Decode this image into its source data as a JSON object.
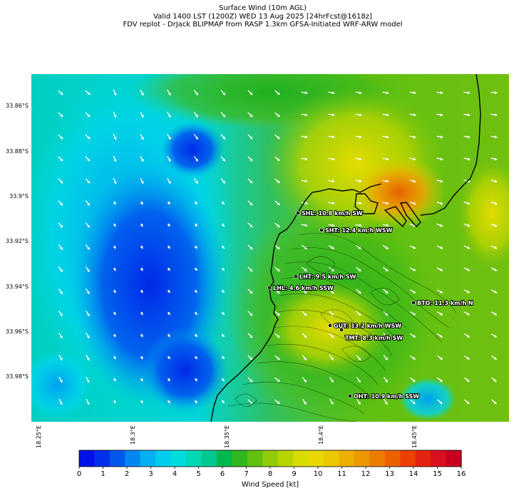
{
  "titles": {
    "line1": "Surface Wind (10m AGL)",
    "line2": "Valid 1400 LST (1200Z) WED 13 Aug 2025 [24hrFcst@1618z]",
    "line3": "FDV replot - DrJack BLIPMAP from RASP 1.3km GFSA-Initiated WRF-ARW model"
  },
  "axes": {
    "lat_labels": [
      "33.86°S",
      "33.88°S",
      "33.9°S",
      "33.92°S",
      "33.94°S",
      "33.96°S",
      "33.98°S"
    ],
    "lon_labels": [
      "18.25°E",
      "18.3°E",
      "18.35°E",
      "18.4°E",
      "18.45°E"
    ]
  },
  "stations": [
    {
      "code": "SHL",
      "label": "SHL: 10.8 km/h SW"
    },
    {
      "code": "SHT",
      "label": "SHT: 12.4 km/h WSW"
    },
    {
      "code": "LHT",
      "label": "LHT: 9.5 km/h SW"
    },
    {
      "code": "LHL",
      "label": "LHL: 4.6 km/h SSW"
    },
    {
      "code": "BTO",
      "label": "BTO: 11.3 km/h N"
    },
    {
      "code": "GUT",
      "label": "GUT: 13.2 km/h WSW"
    },
    {
      "code": "TMT",
      "label": "TMT: 8.3 km/h SW"
    },
    {
      "code": "OHT",
      "label": "OHT: 10.9 km/h SSW"
    }
  ],
  "colorbar": {
    "title": "Wind Speed [kt]",
    "ticks": [
      "0",
      "1",
      "2",
      "3",
      "4",
      "5",
      "6",
      "7",
      "8",
      "9",
      "10",
      "11",
      "12",
      "13",
      "14",
      "15",
      "16"
    ],
    "colors": [
      "#0010e8",
      "#0030ec",
      "#0058ee",
      "#0088f0",
      "#00b0f0",
      "#00ccee",
      "#00dcdc",
      "#00d8b4",
      "#00c890",
      "#00b850",
      "#30b820",
      "#60c010",
      "#90cc08",
      "#b8d400",
      "#d8dc00",
      "#e8d800",
      "#ecc800",
      "#ecb000",
      "#ec9800",
      "#ec7c00",
      "#ec6000",
      "#ec4000",
      "#e42410",
      "#d81020",
      "#c80020"
    ]
  },
  "wind_colors": {
    "low": "#0038e8",
    "mid": "#00d8dc",
    "green": "#20b020",
    "yellow": "#e0dc00",
    "orange": "#e87800"
  }
}
